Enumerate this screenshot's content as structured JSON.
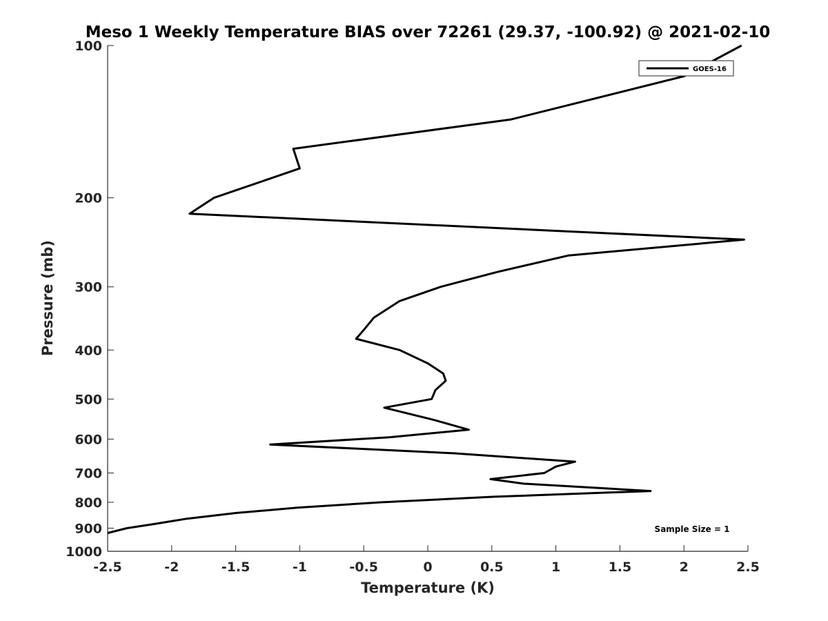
{
  "chart_data": {
    "type": "line",
    "title": "Meso 1 Weekly Temperature BIAS over 72261 (29.37, -100.92) @ 2021-02-10",
    "xlabel": "Temperature (K)",
    "ylabel": "Pressure (mb)",
    "xlim": [
      -2.5,
      2.5
    ],
    "ylim": [
      100,
      1000
    ],
    "y_scale": "log",
    "y_reversed": true,
    "x_ticks": [
      -2.5,
      -2,
      -1.5,
      -1,
      -0.5,
      0,
      0.5,
      1,
      1.5,
      2,
      2.5
    ],
    "x_tick_labels": [
      "-2.5",
      "-2",
      "-1.5",
      "-1",
      "-0.5",
      "0",
      "0.5",
      "1",
      "1.5",
      "2",
      "2.5"
    ],
    "y_ticks": [
      100,
      200,
      300,
      400,
      500,
      600,
      700,
      800,
      900,
      1000
    ],
    "y_tick_labels": [
      "100",
      "200",
      "300",
      "400",
      "500",
      "600",
      "700",
      "800",
      "900",
      "1000"
    ],
    "grid": false,
    "legend_position": "top-right",
    "annotation": "Sample Size = 1",
    "series": [
      {
        "name": "GOES-16",
        "color": "#000000",
        "points": [
          [
            2.45,
            100
          ],
          [
            2.0,
            115
          ],
          [
            0.65,
            140
          ],
          [
            -1.05,
            160
          ],
          [
            -1.0,
            175
          ],
          [
            -1.67,
            200
          ],
          [
            -1.86,
            215
          ],
          [
            2.47,
            242
          ],
          [
            1.1,
            260
          ],
          [
            0.55,
            280
          ],
          [
            0.1,
            300
          ],
          [
            -0.22,
            320
          ],
          [
            -0.42,
            345
          ],
          [
            -0.5,
            365
          ],
          [
            -0.56,
            380
          ],
          [
            -0.22,
            400
          ],
          [
            0.0,
            425
          ],
          [
            0.12,
            445
          ],
          [
            0.14,
            460
          ],
          [
            0.06,
            480
          ],
          [
            0.03,
            500
          ],
          [
            -0.34,
            520
          ],
          [
            0.05,
            550
          ],
          [
            0.32,
            575
          ],
          [
            -0.3,
            595
          ],
          [
            -1.23,
            615
          ],
          [
            0.2,
            640
          ],
          [
            1.15,
            665
          ],
          [
            1.0,
            680
          ],
          [
            0.91,
            700
          ],
          [
            0.49,
            720
          ],
          [
            0.75,
            735
          ],
          [
            1.74,
            760
          ],
          [
            0.52,
            780
          ],
          [
            -0.37,
            800
          ],
          [
            -1.02,
            820
          ],
          [
            -1.5,
            840
          ],
          [
            -1.88,
            862
          ],
          [
            -2.16,
            885
          ],
          [
            -2.35,
            900
          ],
          [
            -2.5,
            920
          ]
        ]
      }
    ]
  }
}
